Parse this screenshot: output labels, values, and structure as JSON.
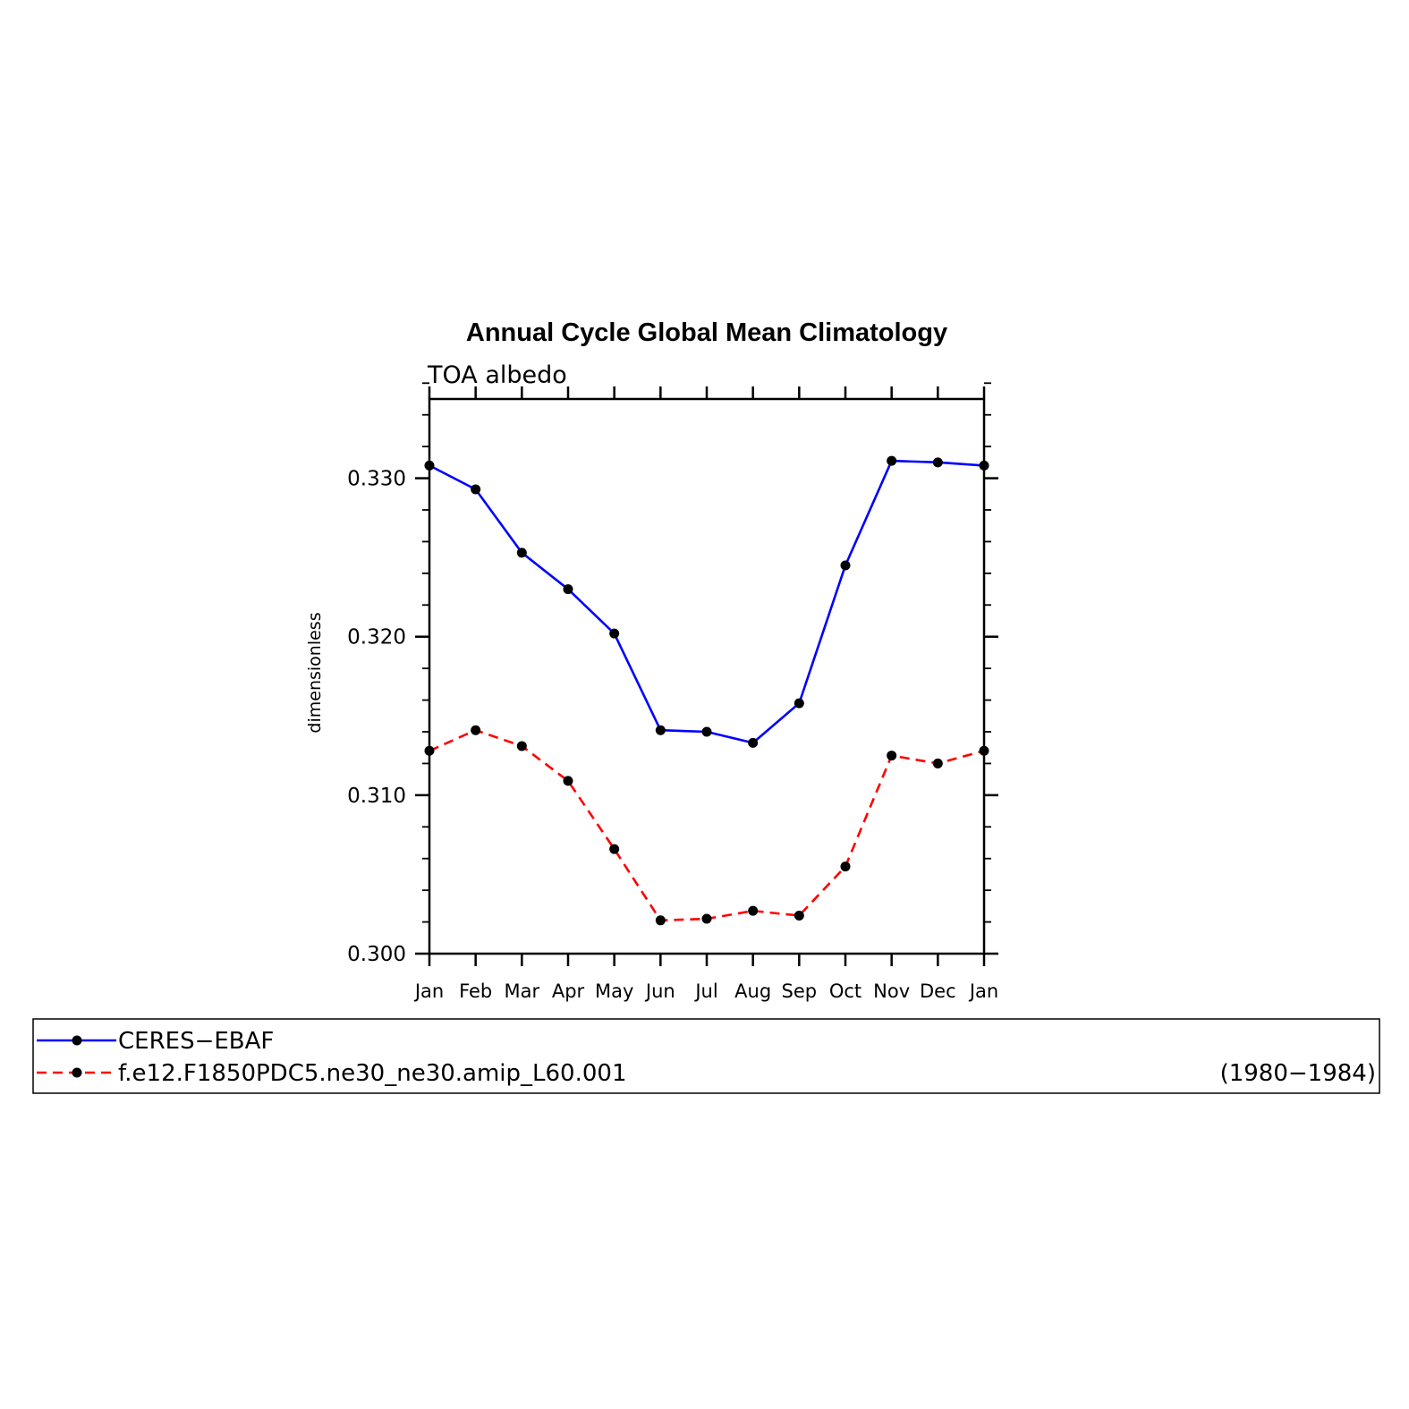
{
  "chart_data": {
    "type": "line",
    "title": "Annual Cycle Global Mean Climatology",
    "subtitle": "TOA albedo",
    "ylabel": "dimensionless",
    "xlabel": "",
    "categories": [
      "Jan",
      "Feb",
      "Mar",
      "Apr",
      "May",
      "Jun",
      "Jul",
      "Aug",
      "Sep",
      "Oct",
      "Nov",
      "Dec",
      "Jan"
    ],
    "ylim": [
      0.3,
      0.335
    ],
    "yticks": [
      "0.300",
      "0.310",
      "0.320",
      "0.330"
    ],
    "grid": false,
    "legend_position": "bottom",
    "series": [
      {
        "name": "CERES-EBAF",
        "color": "#0000ff",
        "line_style": "solid",
        "marker": "filled-circle",
        "values": [
          0.3308,
          0.3293,
          0.3253,
          0.323,
          0.3202,
          0.3141,
          0.314,
          0.3133,
          0.3158,
          0.3245,
          0.3311,
          0.331,
          0.3308
        ]
      },
      {
        "name": "f.e12.F1850PDC5.ne30_ne30.amip_L60.001",
        "legend_suffix": "(1980−1984)",
        "color": "#ff0000",
        "line_style": "dashed",
        "marker": "filled-circle",
        "values": [
          0.3128,
          0.3141,
          0.3131,
          0.3109,
          0.3066,
          0.3021,
          0.3022,
          0.3027,
          0.3024,
          0.3055,
          0.3125,
          0.312,
          0.3128
        ]
      }
    ]
  },
  "legend": {
    "entries": [
      {
        "label": "CERES−EBAF",
        "suffix": ""
      },
      {
        "label": "f.e12.F1850PDC5.ne30_ne30.amip_L60.001",
        "suffix": "(1980−1984)"
      }
    ]
  }
}
